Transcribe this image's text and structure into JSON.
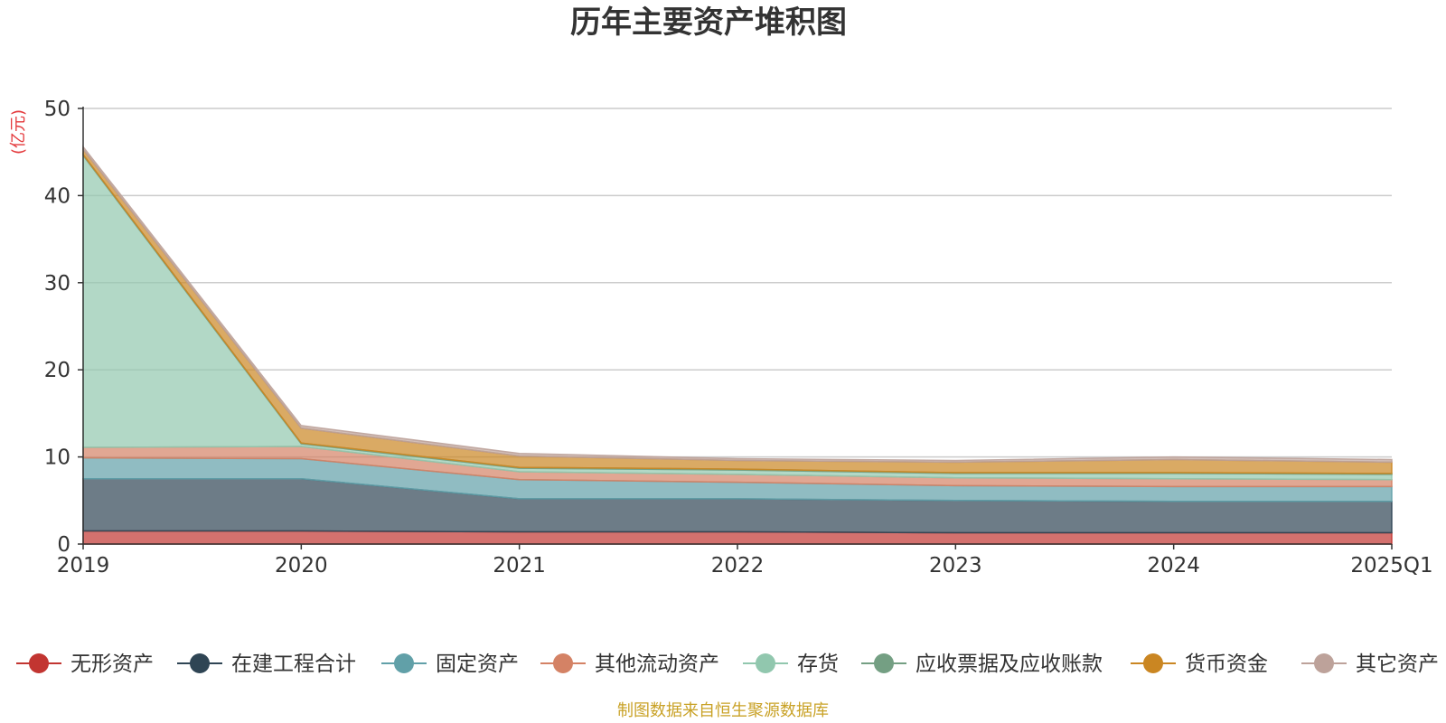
{
  "chart_data": {
    "type": "area",
    "stacked": true,
    "title": "历年主要资产堆积图",
    "unit_label": "(亿元)",
    "categories": [
      "2019",
      "2020",
      "2021",
      "2022",
      "2023",
      "2024",
      "2025Q1"
    ],
    "ylim": [
      0,
      50
    ],
    "yticks": [
      "0",
      "10",
      "20",
      "30",
      "40",
      "50"
    ],
    "grid": true,
    "legend_position": "bottom",
    "series": [
      {
        "name": "无形资产",
        "color": "#c23531",
        "values": [
          1.5,
          1.5,
          1.4,
          1.4,
          1.3,
          1.3,
          1.3
        ]
      },
      {
        "name": "在建工程合计",
        "color": "#2f4554",
        "values": [
          6.0,
          6.0,
          3.8,
          3.8,
          3.7,
          3.6,
          3.6
        ]
      },
      {
        "name": "固定资产",
        "color": "#61a0a8",
        "values": [
          2.4,
          2.3,
          2.2,
          1.9,
          1.7,
          1.7,
          1.7
        ]
      },
      {
        "name": "其他流动资产",
        "color": "#d48265",
        "values": [
          1.2,
          1.4,
          0.9,
          0.9,
          0.9,
          0.9,
          0.8
        ]
      },
      {
        "name": "存货",
        "color": "#91c7ae",
        "values": [
          33.5,
          0.3,
          0.4,
          0.5,
          0.5,
          0.6,
          0.6
        ]
      },
      {
        "name": "应收票据及应收账款",
        "color": "#749f83",
        "values": [
          0.1,
          0.1,
          0.1,
          0.1,
          0.1,
          0.1,
          0.1
        ]
      },
      {
        "name": "货币资金",
        "color": "#ca8622",
        "values": [
          0.6,
          1.7,
          1.3,
          1.0,
          1.2,
          1.5,
          1.3
        ]
      },
      {
        "name": "其它资产",
        "color": "#bda29a",
        "values": [
          0.3,
          0.3,
          0.3,
          0.2,
          0.2,
          0.3,
          0.3
        ]
      }
    ],
    "source_note": "制图数据来自恒生聚源数据库"
  }
}
